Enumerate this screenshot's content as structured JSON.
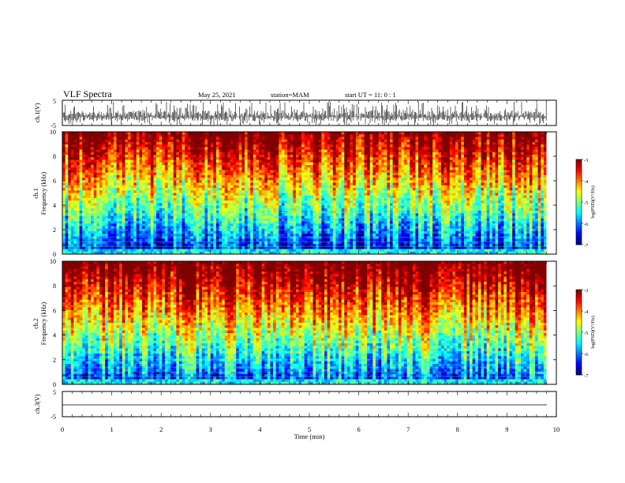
{
  "header": {
    "title": "VLF Spectra",
    "date": "May 25, 2021",
    "station": "station=MAM",
    "start": "start  UT =   11: 0  : 1"
  },
  "chart_data": [
    {
      "type": "line",
      "panel": "ch1-waveform",
      "ylabel": "ch.1(V)",
      "ylim": [
        -5,
        5
      ],
      "yticks": [
        "5",
        "-5"
      ],
      "xlim": [
        0,
        10
      ],
      "description_values": {
        "baseline": -1.5,
        "spike_max": 4.5,
        "spike_min": -5
      }
    },
    {
      "type": "heatmap",
      "panel": "ch1-spectrogram",
      "ylabel_lines": [
        "ch.1",
        "Frequency  (kHz)"
      ],
      "ylim": [
        0,
        10
      ],
      "yticks": [
        "0",
        "2",
        "4",
        "6",
        "8",
        "10"
      ],
      "xlim": [
        0,
        10
      ],
      "data_end_min": 9.8,
      "colorbar": {
        "label": "log(PSD)(V²/Hz)",
        "ticks": [
          "-3",
          "-4",
          "-5",
          "-6",
          "-7"
        ],
        "range": [
          -7,
          -3
        ]
      }
    },
    {
      "type": "heatmap",
      "panel": "ch2-spectrogram",
      "ylabel_lines": [
        "ch.2",
        "Frequency  (kHz)"
      ],
      "ylim": [
        0,
        10
      ],
      "yticks": [
        "0",
        "2",
        "4",
        "6",
        "8",
        "10"
      ],
      "xlim": [
        0,
        10
      ],
      "data_end_min": 9.8,
      "colorbar": {
        "label": "log(PSD)(V²/Hz)",
        "ticks": [
          "-3",
          "-4",
          "-5",
          "-6",
          "-7"
        ],
        "range": [
          -7,
          -3
        ]
      }
    },
    {
      "type": "line",
      "panel": "ch3-waveform",
      "ylabel": "ch.3(V)",
      "ylim": [
        -5,
        5
      ],
      "yticks": [
        "5",
        "-5"
      ],
      "xlim": [
        0,
        10
      ],
      "values": {
        "constant": -1.5
      }
    }
  ],
  "xaxis": {
    "label": "Time  (min)",
    "ticks": [
      "0",
      "1",
      "2",
      "3",
      "4",
      "5",
      "6",
      "7",
      "8",
      "9",
      "10"
    ]
  },
  "colors": {
    "spec_low": "#00008f",
    "spec_mid": "#00ff80",
    "spec_high": "#ff0000"
  }
}
